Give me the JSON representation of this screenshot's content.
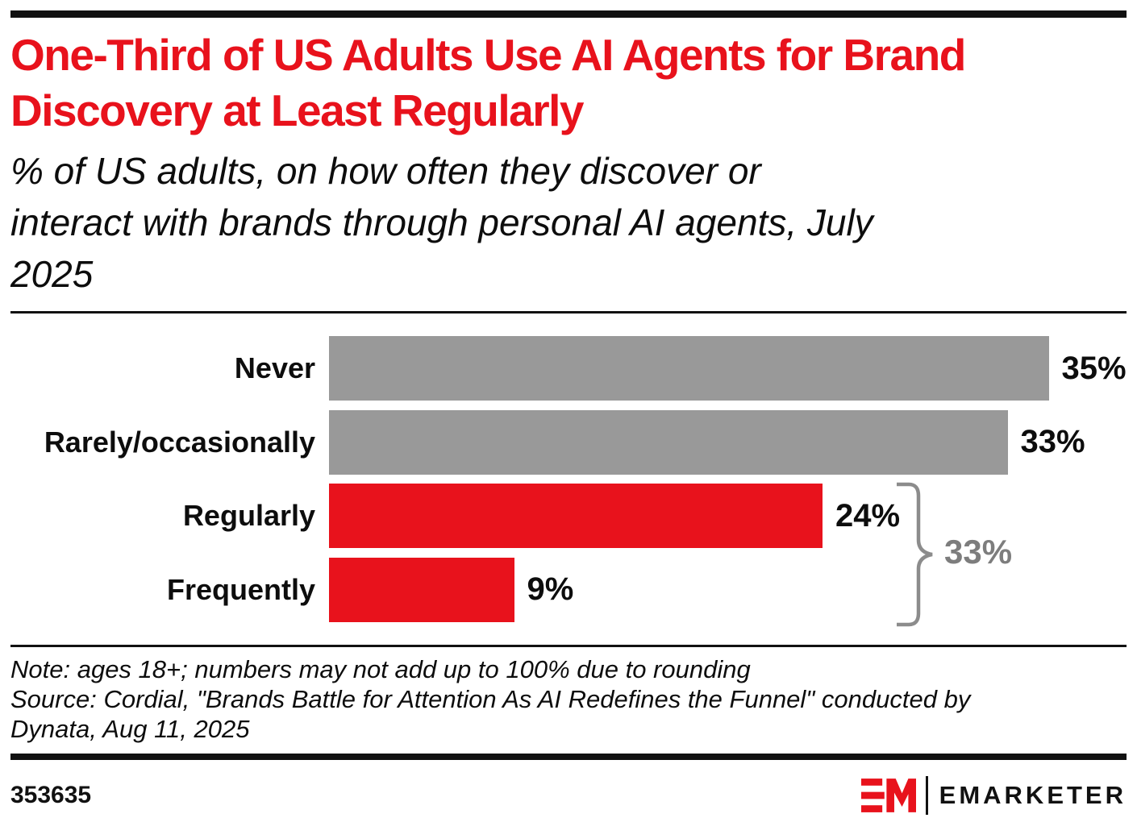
{
  "header": {
    "title": "One-Third of US Adults Use AI Agents for Brand\nDiscovery at Least Regularly",
    "subtitle": "% of US adults, on how often they discover or\ninteract with brands through personal AI agents, July\n2025"
  },
  "chart_data": {
    "type": "bar",
    "orientation": "horizontal",
    "title": "One-Third of US Adults Use AI Agents for Brand Discovery at Least Regularly",
    "subtitle": "% of US adults, on how often they discover or interact with brands through personal AI agents, July 2025",
    "categories": [
      "Never",
      "Rarely/occasionally",
      "Regularly",
      "Frequently"
    ],
    "values": [
      35,
      33,
      24,
      9
    ],
    "value_labels": [
      "35%",
      "33%",
      "24%",
      "9%"
    ],
    "unit": "%",
    "xlim": [
      0,
      35
    ],
    "grid": false,
    "legend": false,
    "bar_colors": [
      "#999999",
      "#999999",
      "#E8121C",
      "#E8121C"
    ],
    "annotation": {
      "label": "33%",
      "spans": [
        "Regularly",
        "Frequently"
      ],
      "meaning": "combined share using AI agents at least regularly",
      "color": "#7d7d7d"
    }
  },
  "footnotes": {
    "note": "Note: ages 18+; numbers may not add up to 100% due to rounding",
    "source": "Source: Cordial, \"Brands Battle for Attention As AI Redefines the Funnel\" conducted by\nDynata, Aug 11, 2025"
  },
  "footer": {
    "chart_number": "353635",
    "brand": "EMARKETER"
  },
  "colors": {
    "accent_red": "#E8121C",
    "bar_gray": "#999999",
    "brace_gray": "#8c8c8c",
    "rule_black": "#111111"
  }
}
